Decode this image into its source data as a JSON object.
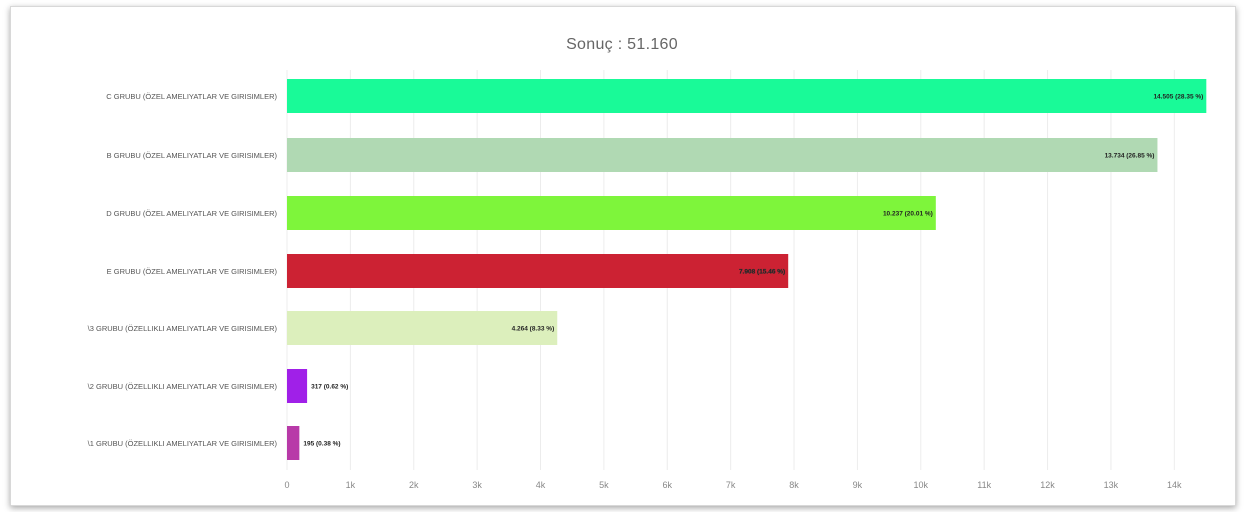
{
  "chart_data": {
    "type": "bar",
    "orientation": "horizontal",
    "title": "Sonuç : 51.160",
    "xlabel": "",
    "ylabel": "",
    "xlim": [
      0,
      14500
    ],
    "x_ticks": [
      "0",
      "1k",
      "2k",
      "3k",
      "4k",
      "5k",
      "6k",
      "7k",
      "8k",
      "9k",
      "10k",
      "11k",
      "12k",
      "13k",
      "14k"
    ],
    "grid": true,
    "categories": [
      "C GRUBU (ÖZEL AMELIYATLAR VE GIRISIMLER)",
      "B GRUBU (ÖZEL AMELIYATLAR VE GIRISIMLER)",
      "D GRUBU (ÖZEL AMELIYATLAR VE GIRISIMLER)",
      "E GRUBU (ÖZEL AMELIYATLAR VE GIRISIMLER)",
      "\\3 GRUBU (ÖZELLIKLI AMELIYATLAR VE GIRISIMLER)",
      "\\2 GRUBU (ÖZELLIKLI AMELIYATLAR VE GIRISIMLER)",
      "\\1 GRUBU (ÖZELLIKLI AMELIYATLAR VE GIRISIMLER)"
    ],
    "values": [
      14505,
      13734,
      10237,
      7908,
      4264,
      317,
      195
    ],
    "data_labels": [
      "14.505 (28.35 %)",
      "13.734 (26.85 %)",
      "10.237 (20.01 %)",
      "7.908 (15.46 %)",
      "4.264 (8.33 %)",
      "317 (0.62 %)",
      "195 (0.38 %)"
    ],
    "colors": [
      "#19fa98",
      "#b0d9b3",
      "#7ef53b",
      "#cc2233",
      "#dcefbc",
      "#a020e8",
      "#b83aa8"
    ]
  }
}
